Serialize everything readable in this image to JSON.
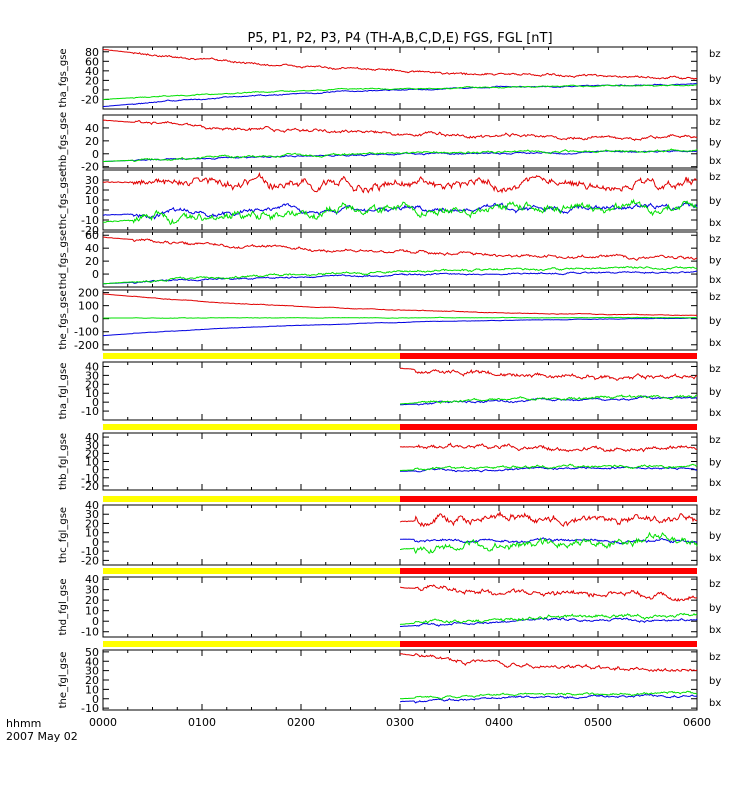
{
  "title": "P5, P1, P2, P3, P4 (TH-A,B,C,D,E) FGS, FGL [nT]",
  "colors": {
    "bz": "#e00000",
    "by": "#00e000",
    "bx": "#0000e0",
    "mode_slow": "#ffff00",
    "mode_fast": "#ff0000"
  },
  "footer": {
    "xlabel": "hhmm",
    "date": "2007 May 02"
  },
  "chart_data": {
    "type": "line",
    "x_range": [
      "0000",
      "0600"
    ],
    "x_ticks": [
      "0000",
      "0100",
      "0200",
      "0300",
      "0400",
      "0500",
      "0600"
    ],
    "mode_bar": {
      "slow_until": "0300",
      "fast_from": "0300"
    },
    "panels": [
      {
        "ylabel": "tha_fgs_gse",
        "ylim": [
          -40,
          90
        ],
        "yticks": [
          "80",
          "60",
          "40",
          "20",
          "0",
          "-20"
        ],
        "series": [
          {
            "name": "bz",
            "start": 85,
            "end": 25,
            "noise": 3
          },
          {
            "name": "by",
            "start": -20,
            "end": 10,
            "noise": 1.5
          },
          {
            "name": "bx",
            "start": -35,
            "end": 12,
            "noise": 1.5
          }
        ]
      },
      {
        "ylabel": "thb_fgs_gse",
        "ylim": [
          -22,
          60
        ],
        "yticks": [
          "40",
          "20",
          "0",
          "-20"
        ],
        "series": [
          {
            "name": "bz",
            "start": 52,
            "end": 25,
            "noise": 3
          },
          {
            "name": "by",
            "start": -12,
            "end": 5,
            "noise": 2
          },
          {
            "name": "bx",
            "start": -12,
            "end": 3,
            "noise": 1.5
          }
        ]
      },
      {
        "ylabel": "thc_fgs_gse",
        "ylim": [
          -20,
          40
        ],
        "yticks": [
          "30",
          "20",
          "10",
          "0",
          "-10",
          "-20"
        ],
        "series": [
          {
            "name": "bz",
            "start": 28,
            "end": 25,
            "noise": 5
          },
          {
            "name": "by",
            "start": -12,
            "end": 3,
            "noise": 5
          },
          {
            "name": "bx",
            "start": -5,
            "end": 2,
            "noise": 3
          }
        ]
      },
      {
        "ylabel": "thd_fgs_gse",
        "ylim": [
          -20,
          65
        ],
        "yticks": [
          "60",
          "40",
          "20",
          "0"
        ],
        "series": [
          {
            "name": "bz",
            "start": 57,
            "end": 25,
            "noise": 3
          },
          {
            "name": "by",
            "start": -15,
            "end": 10,
            "noise": 2
          },
          {
            "name": "bx",
            "start": -15,
            "end": 3,
            "noise": 1.5
          }
        ]
      },
      {
        "ylabel": "the_fgs_gse",
        "ylim": [
          -240,
          220
        ],
        "yticks": [
          "200",
          "100",
          "0",
          "-100",
          "-200"
        ],
        "series": [
          {
            "name": "bz",
            "start": 190,
            "end": 25,
            "noise": 3
          },
          {
            "name": "by",
            "start": 5,
            "end": 8,
            "noise": 2
          },
          {
            "name": "bx",
            "start": -130,
            "end": 5,
            "noise": 2
          }
        ]
      },
      {
        "ylabel": "tha_fgl_gse",
        "ylim": [
          -20,
          45
        ],
        "yticks": [
          "40",
          "30",
          "20",
          "10",
          "0",
          "-10"
        ],
        "series": [
          {
            "name": "bz",
            "start": 38,
            "end": 28,
            "noise": 3
          },
          {
            "name": "by",
            "start": -2,
            "end": 6,
            "noise": 2
          },
          {
            "name": "bx",
            "start": -3,
            "end": 4,
            "noise": 1.5
          }
        ]
      },
      {
        "ylabel": "thb_fgl_gse",
        "ylim": [
          -25,
          45
        ],
        "yticks": [
          "40",
          "30",
          "20",
          "10",
          "0",
          "-10",
          "-20"
        ],
        "series": [
          {
            "name": "bz",
            "start": 28,
            "end": 25,
            "noise": 3
          },
          {
            "name": "by",
            "start": -1,
            "end": 5,
            "noise": 2
          },
          {
            "name": "bx",
            "start": -2,
            "end": 2,
            "noise": 1.5
          }
        ]
      },
      {
        "ylabel": "thc_fgl_gse",
        "ylim": [
          -25,
          40
        ],
        "yticks": [
          "40",
          "30",
          "20",
          "10",
          "0",
          "-10",
          "-20"
        ],
        "series": [
          {
            "name": "bz",
            "start": 22,
            "end": 26,
            "noise": 5
          },
          {
            "name": "by",
            "start": -8,
            "end": 2,
            "noise": 5
          },
          {
            "name": "bx",
            "start": 3,
            "end": 1,
            "noise": 2
          }
        ]
      },
      {
        "ylabel": "thd_fgl_gse",
        "ylim": [
          -15,
          42
        ],
        "yticks": [
          "40",
          "30",
          "20",
          "10",
          "0",
          "-10"
        ],
        "series": [
          {
            "name": "bz",
            "start": 32,
            "end": 25,
            "noise": 3
          },
          {
            "name": "by",
            "start": -3,
            "end": 6,
            "noise": 2
          },
          {
            "name": "bx",
            "start": -5,
            "end": 2,
            "noise": 1.5
          }
        ]
      },
      {
        "ylabel": "the_fgl_gse",
        "ylim": [
          -12,
          52
        ],
        "yticks": [
          "50",
          "40",
          "30",
          "20",
          "10",
          "0",
          "-10"
        ],
        "series": [
          {
            "name": "bz",
            "start": 48,
            "end": 30,
            "noise": 2.5
          },
          {
            "name": "by",
            "start": 0,
            "end": 6,
            "noise": 1.5
          },
          {
            "name": "bx",
            "start": -3,
            "end": 3,
            "noise": 1.5
          }
        ]
      }
    ]
  }
}
